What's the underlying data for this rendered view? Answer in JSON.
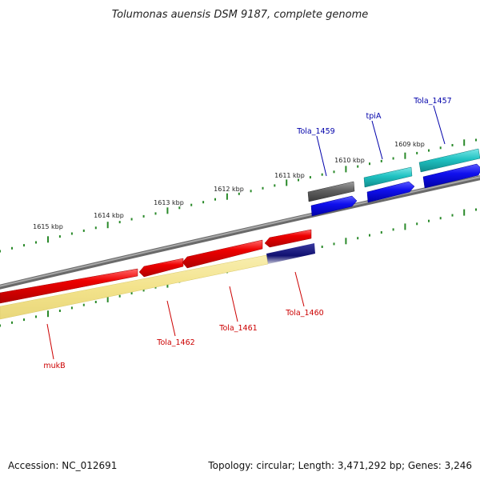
{
  "title": "Tolumonas auensis DSM 9187, complete genome",
  "accession": "Accession: NC_012691",
  "summary": "Topology: circular; Length: 3,471,292 bp; Genes: 3,246",
  "colors": {
    "forward_label": "#0000aa",
    "reverse_label": "#cc0000",
    "backbone": "#8a8a8a",
    "tick": "#2a8a2a",
    "red_gene": "#e80000",
    "blue_gene": "#1010e8",
    "cyan_gene": "#20c0c0",
    "gray_gene": "#606060",
    "navy_gene": "#10106a",
    "khaki_gene": "#f2e48a"
  },
  "scale_labels": [
    "1615 kbp",
    "1614 kbp",
    "1613 kbp",
    "1612 kbp",
    "1611 kbp",
    "1610 kbp",
    "1609 kbp"
  ],
  "gene_labels": {
    "forward": [
      "Tola_1459",
      "tpiA",
      "Tola_1457"
    ],
    "reverse": [
      "mukB",
      "Tola_1462",
      "Tola_1461",
      "Tola_1460"
    ]
  }
}
